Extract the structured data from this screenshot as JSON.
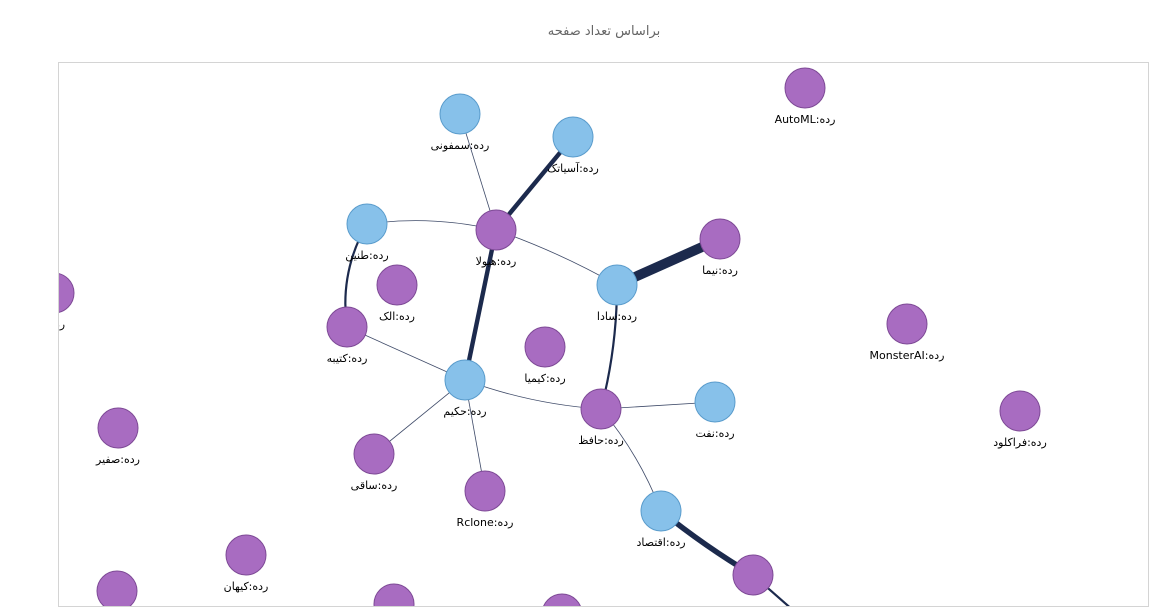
{
  "chart": {
    "title": "براساس تعداد صفحه"
  },
  "colors": {
    "blue_node": "#87c1ea",
    "blue_stroke": "#5a9ccc",
    "purple_node": "#a86cc1",
    "purple_stroke": "#7e4a96",
    "edge": "#1c2a4d"
  },
  "nodes": [
    {
      "id": "symphony",
      "label": "رده:سمفونی",
      "color": "blue"
    },
    {
      "id": "asiatech",
      "label": "رده:آسیاتک",
      "color": "blue"
    },
    {
      "id": "automl",
      "label": "رده:AutoML",
      "color": "purple"
    },
    {
      "id": "tanin",
      "label": "رده:طنین",
      "color": "blue"
    },
    {
      "id": "hivola",
      "label": "رده:هیولا",
      "color": "purple"
    },
    {
      "id": "nima",
      "label": "رده:نیما",
      "color": "purple"
    },
    {
      "id": "alak",
      "label": "رده:الک",
      "color": "purple"
    },
    {
      "id": "sada",
      "label": "رده:سادا",
      "color": "blue"
    },
    {
      "id": "monsterai",
      "label": "رده:MonsterAI",
      "color": "purple"
    },
    {
      "id": "left_edge",
      "label": "رد",
      "color": "purple"
    },
    {
      "id": "katibe",
      "label": "رده:کتیبه",
      "color": "purple"
    },
    {
      "id": "kimia",
      "label": "رده:کیمیا",
      "color": "purple"
    },
    {
      "id": "hakim",
      "label": "رده:حکیم",
      "color": "blue"
    },
    {
      "id": "hafez",
      "label": "رده:حافظ",
      "color": "purple"
    },
    {
      "id": "naft",
      "label": "رده:نفت",
      "color": "blue"
    },
    {
      "id": "faracloud",
      "label": "رده:فراکلود",
      "color": "purple"
    },
    {
      "id": "safir",
      "label": "رده:صفیر",
      "color": "purple"
    },
    {
      "id": "saghi",
      "label": "رده:ساقی",
      "color": "purple"
    },
    {
      "id": "rclone",
      "label": "رده:Rclone",
      "color": "purple"
    },
    {
      "id": "eghtesad",
      "label": "رده:اقتصاد",
      "color": "blue"
    },
    {
      "id": "keyhan",
      "label": "رده:کیهان",
      "color": "purple"
    },
    {
      "id": "bottom_mid",
      "label": "",
      "color": "purple"
    },
    {
      "id": "bottom_left",
      "label": "",
      "color": "purple"
    },
    {
      "id": "bottom_c1",
      "label": "",
      "color": "purple"
    },
    {
      "id": "bottom_c2",
      "label": "",
      "color": "purple"
    }
  ],
  "edges": [
    {
      "source": "asiatech",
      "target": "hivola",
      "weight": 4
    },
    {
      "source": "symphony",
      "target": "hivola",
      "weight": 1
    },
    {
      "source": "tanin",
      "target": "hivola",
      "weight": 1
    },
    {
      "source": "hivola",
      "target": "sada",
      "weight": 1
    },
    {
      "source": "hivola",
      "target": "hakim",
      "weight": 4
    },
    {
      "source": "nima",
      "target": "sada",
      "weight": 9
    },
    {
      "source": "tanin",
      "target": "katibe",
      "weight": 2
    },
    {
      "source": "katibe",
      "target": "hakim",
      "weight": 1
    },
    {
      "source": "sada",
      "target": "hafez",
      "weight": 2
    },
    {
      "source": "hakim",
      "target": "hafez",
      "weight": 1
    },
    {
      "source": "hakim",
      "target": "saghi",
      "weight": 1
    },
    {
      "source": "hakim",
      "target": "rclone",
      "weight": 1
    },
    {
      "source": "hafez",
      "target": "naft",
      "weight": 1
    },
    {
      "source": "hafez",
      "target": "eghtesad",
      "weight": 1
    },
    {
      "source": "eghtesad",
      "target": "bottom_mid",
      "weight": 5
    },
    {
      "source": "bottom_mid",
      "target": "offscreen",
      "weight": 2
    }
  ]
}
